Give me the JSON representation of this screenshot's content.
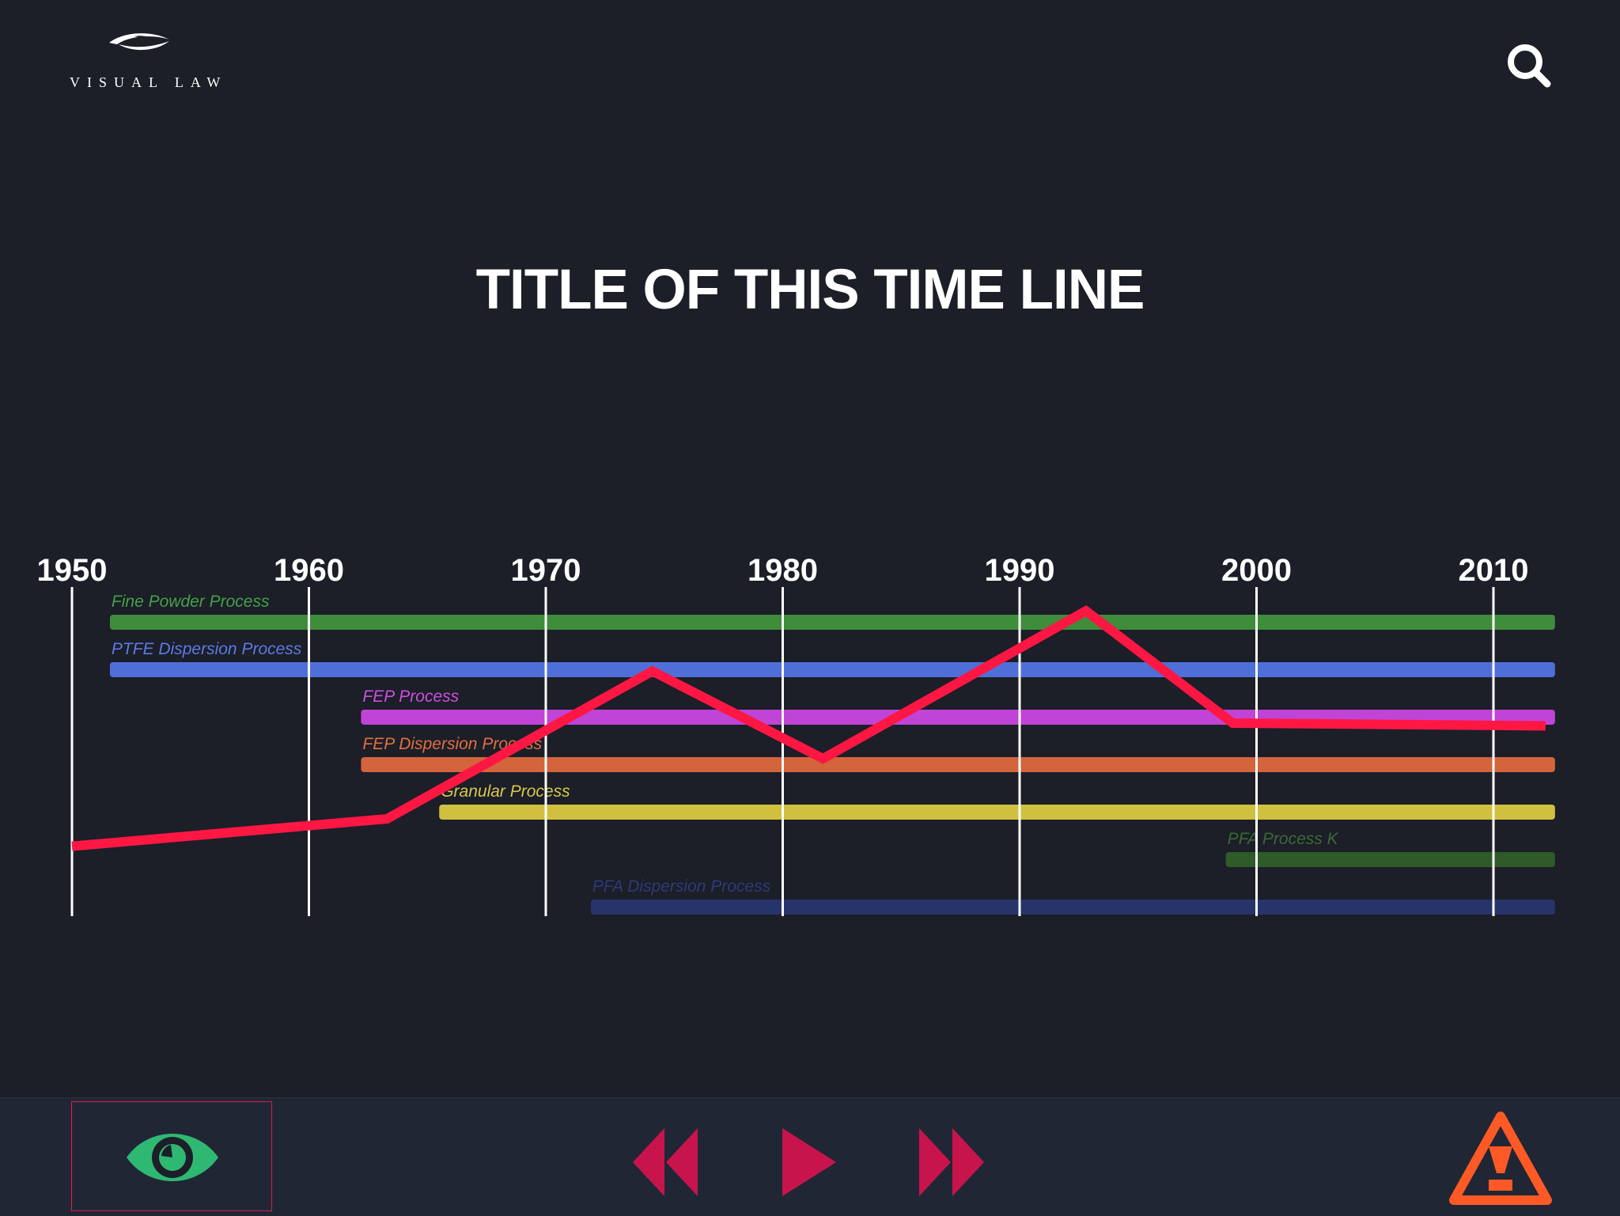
{
  "header": {
    "logo_text": "VISUAL LAW",
    "search_icon": "search-icon"
  },
  "title": "TITLE OF THIS TIME LINE",
  "colors": {
    "background": "#1c1e28",
    "toolbar": "#212635",
    "trend_line": "#ff1744",
    "accent_red": "#c8144c",
    "eye_green": "#2eb872",
    "warning_orange": "#ff5a26"
  },
  "chart_data": {
    "type": "line",
    "title": "TITLE OF THIS TIME LINE",
    "x_ticks": [
      "1950",
      "1960",
      "1970",
      "1980",
      "1990",
      "2000",
      "2010"
    ],
    "xlim": [
      1950,
      2012.6
    ],
    "grid": true,
    "processes": [
      {
        "name": "Fine Powder Process",
        "start": 1951.6,
        "end": 2012.6,
        "color": "#3f8c3b",
        "label_color": "#44a148"
      },
      {
        "name": "PTFE Dispersion Process",
        "start": 1951.6,
        "end": 2012.6,
        "color": "#4f6fd8",
        "label_color": "#5a7be4"
      },
      {
        "name": "FEP Process",
        "start": 1962.2,
        "end": 2012.6,
        "color": "#c044d6",
        "label_color": "#cc4fe0"
      },
      {
        "name": "FEP Dispersion Process",
        "start": 1962.2,
        "end": 2012.6,
        "color": "#d3643c",
        "label_color": "#e0703f"
      },
      {
        "name": "Granular Process",
        "start": 1965.5,
        "end": 2012.6,
        "color": "#d0c040",
        "label_color": "#d9c84a"
      },
      {
        "name": "PFA Process K",
        "start": 1998.7,
        "end": 2012.6,
        "color": "#2f5a2a",
        "label_color": "#3a6a34"
      },
      {
        "name": "PFA Dispersion Process",
        "start": 1971.9,
        "end": 2012.6,
        "color": "#27346a",
        "label_color": "#2c3b78"
      }
    ],
    "series": [
      {
        "x": [
          1950,
          1963.3,
          1974.5,
          1981.7,
          1992.8,
          1999.0,
          2012.2
        ],
        "y": [
          14,
          24,
          78,
          46,
          100,
          59,
          58
        ],
        "color": "#ff1744"
      }
    ],
    "ylim": [
      0,
      107
    ]
  },
  "toolbar": {
    "eye_icon": "eye-icon",
    "rewind_icon": "rewind-icon",
    "play_icon": "play-icon",
    "fast_forward_icon": "fast-forward-icon",
    "warning_icon": "warning-icon"
  }
}
